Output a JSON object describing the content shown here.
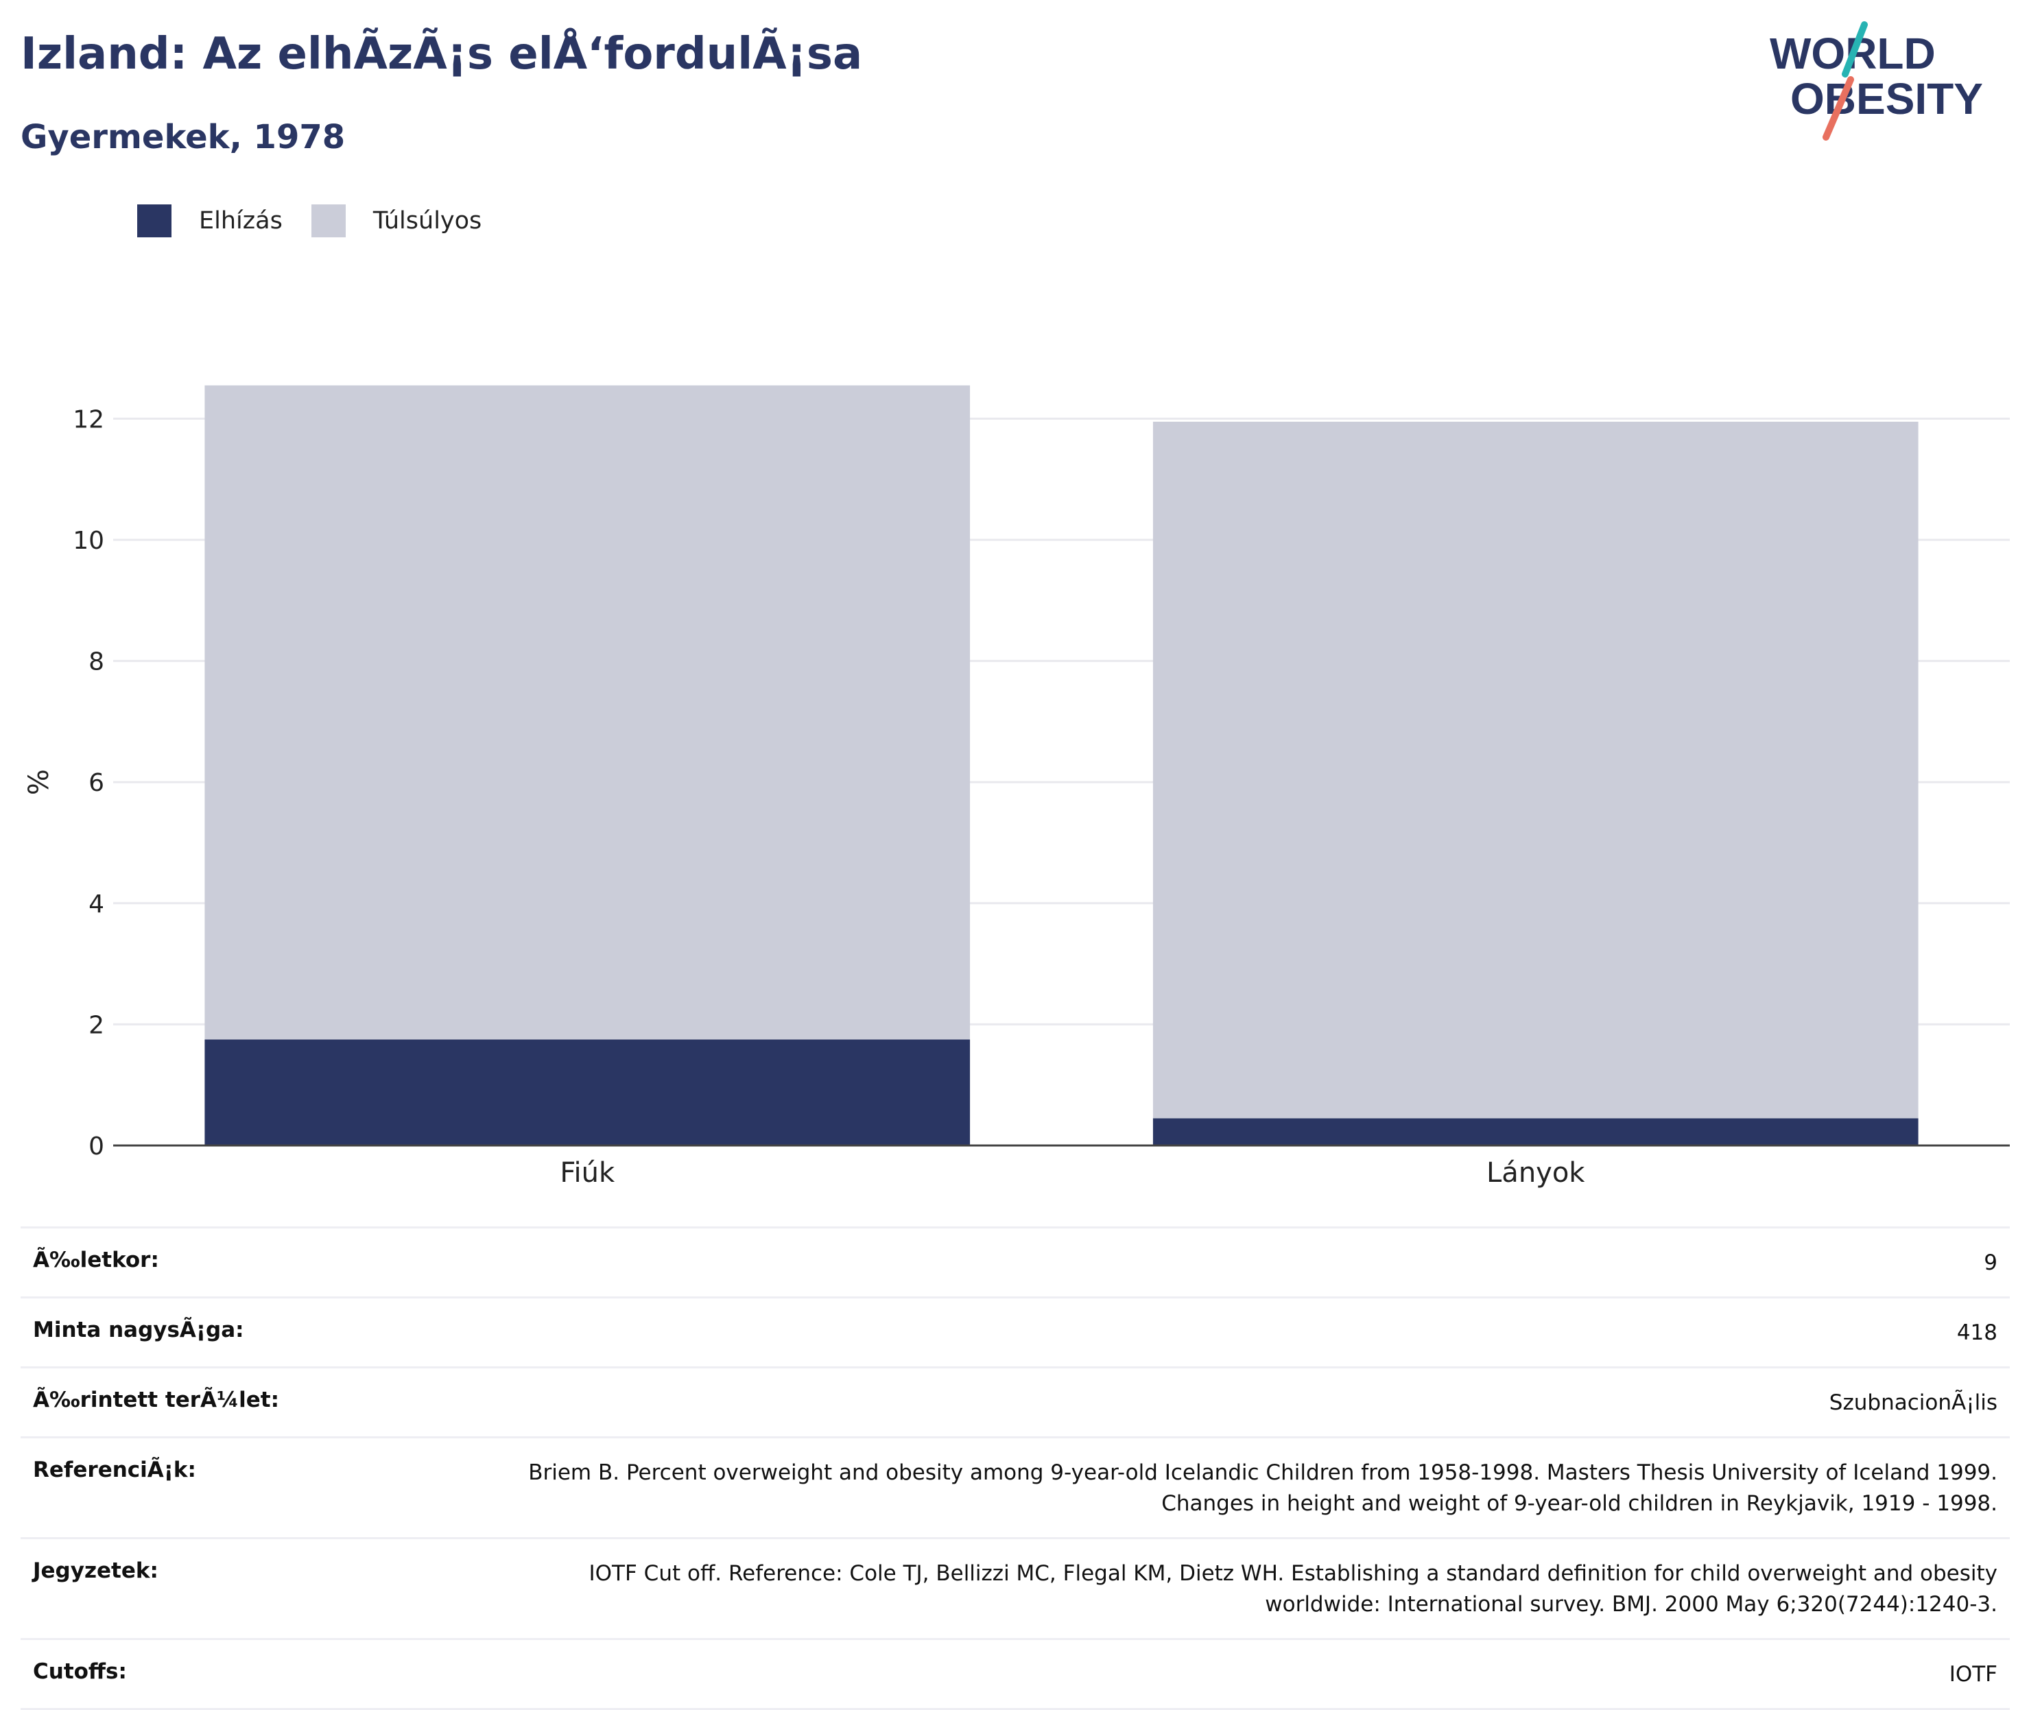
{
  "header": {
    "title": "Izland: Az elhÃzÃ¡s elÅ‘fordulÃ¡sa",
    "subtitle": "Gyermekek, 1978"
  },
  "logo": {
    "line1": "WORLD",
    "line2": "OBESITY"
  },
  "colors": {
    "obesity": "#2a3663",
    "overweight": "#cbcdd9",
    "text": "#2a3663",
    "logo_teal": "#27b3b3",
    "logo_coral": "#e8705f"
  },
  "legend": [
    {
      "label": "Elhízás",
      "color": "#2a3663"
    },
    {
      "label": "Túlsúlyos",
      "color": "#cbcdd9"
    }
  ],
  "chart_data": {
    "type": "bar",
    "stacked": true,
    "categories": [
      "Fiúk",
      "Lányok"
    ],
    "series": [
      {
        "name": "Elhízás",
        "values": [
          1.75,
          0.45
        ]
      },
      {
        "name": "Túlsúlyos",
        "values": [
          10.8,
          11.5
        ]
      }
    ],
    "ylabel": "%",
    "xlabel": "",
    "ylim": [
      0,
      12.6
    ],
    "yticks": [
      0,
      2,
      4,
      6,
      8,
      10,
      12
    ],
    "grid": true,
    "legend_position": "top-left"
  },
  "info_table": [
    {
      "label": "Ã‰letkor:",
      "value": "9"
    },
    {
      "label": "Minta nagysÃ¡ga:",
      "value": "418"
    },
    {
      "label": "Ã‰rintett terÃ¼let:",
      "value": "SzubnacionÃ¡lis"
    },
    {
      "label": "ReferenciÃ¡k:",
      "value": "Briem B. Percent overweight and obesity among 9-year-old Icelandic Children from 1958-1998. Masters Thesis University of Iceland 1999. Changes in height and weight of 9-year-old children in Reykjavik, 1919 - 1998."
    },
    {
      "label": "Jegyzetek:",
      "value": "IOTF Cut off. Reference: Cole TJ, Bellizzi MC, Flegal KM, Dietz WH. Establishing a standard definition for child overweight and obesity worldwide: International survey. BMJ. 2000 May 6;320(7244):1240-3."
    },
    {
      "label": "Cutoffs:",
      "value": "IOTF"
    }
  ]
}
